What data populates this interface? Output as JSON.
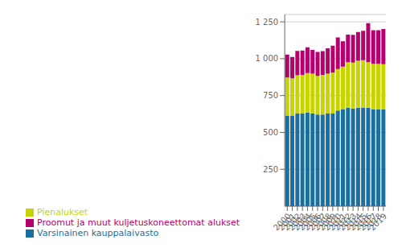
{
  "chart_data": {
    "type": "bar",
    "stacked": true,
    "categories": [
      "2000",
      "2001",
      "2002",
      "2003",
      "2004",
      "2005",
      "2006",
      "2007",
      "2008",
      "2009",
      "2010",
      "2011",
      "2012",
      "2013",
      "2014",
      "2015",
      "2016",
      "2017",
      "2018",
      "2019"
    ],
    "series": [
      {
        "name": "Varsinainen kauppalaivasto",
        "color": "#1a6fa0",
        "values": [
          615,
          615,
          630,
          630,
          635,
          630,
          622,
          622,
          628,
          628,
          648,
          658,
          668,
          662,
          668,
          668,
          668,
          658,
          658,
          655
        ]
      },
      {
        "name": "Pienalukset",
        "color": "#c8d400",
        "values": [
          258,
          252,
          258,
          260,
          268,
          268,
          262,
          268,
          270,
          278,
          282,
          288,
          308,
          312,
          318,
          322,
          308,
          308,
          308,
          308
        ]
      },
      {
        "name": "Proomut ja muut kuljetuskoneettomat alukset",
        "color": "#b5006e",
        "values": [
          155,
          145,
          165,
          165,
          175,
          162,
          162,
          162,
          172,
          182,
          215,
          172,
          188,
          188,
          195,
          200,
          265,
          228,
          228,
          238
        ]
      }
    ],
    "ylim": [
      0,
      1300
    ],
    "yticks": [
      250,
      500,
      750,
      {
        "value": 1000,
        "label": "1 000"
      },
      {
        "value": 1250,
        "label": "1 250"
      }
    ],
    "grid": true,
    "legend": "lower left"
  }
}
